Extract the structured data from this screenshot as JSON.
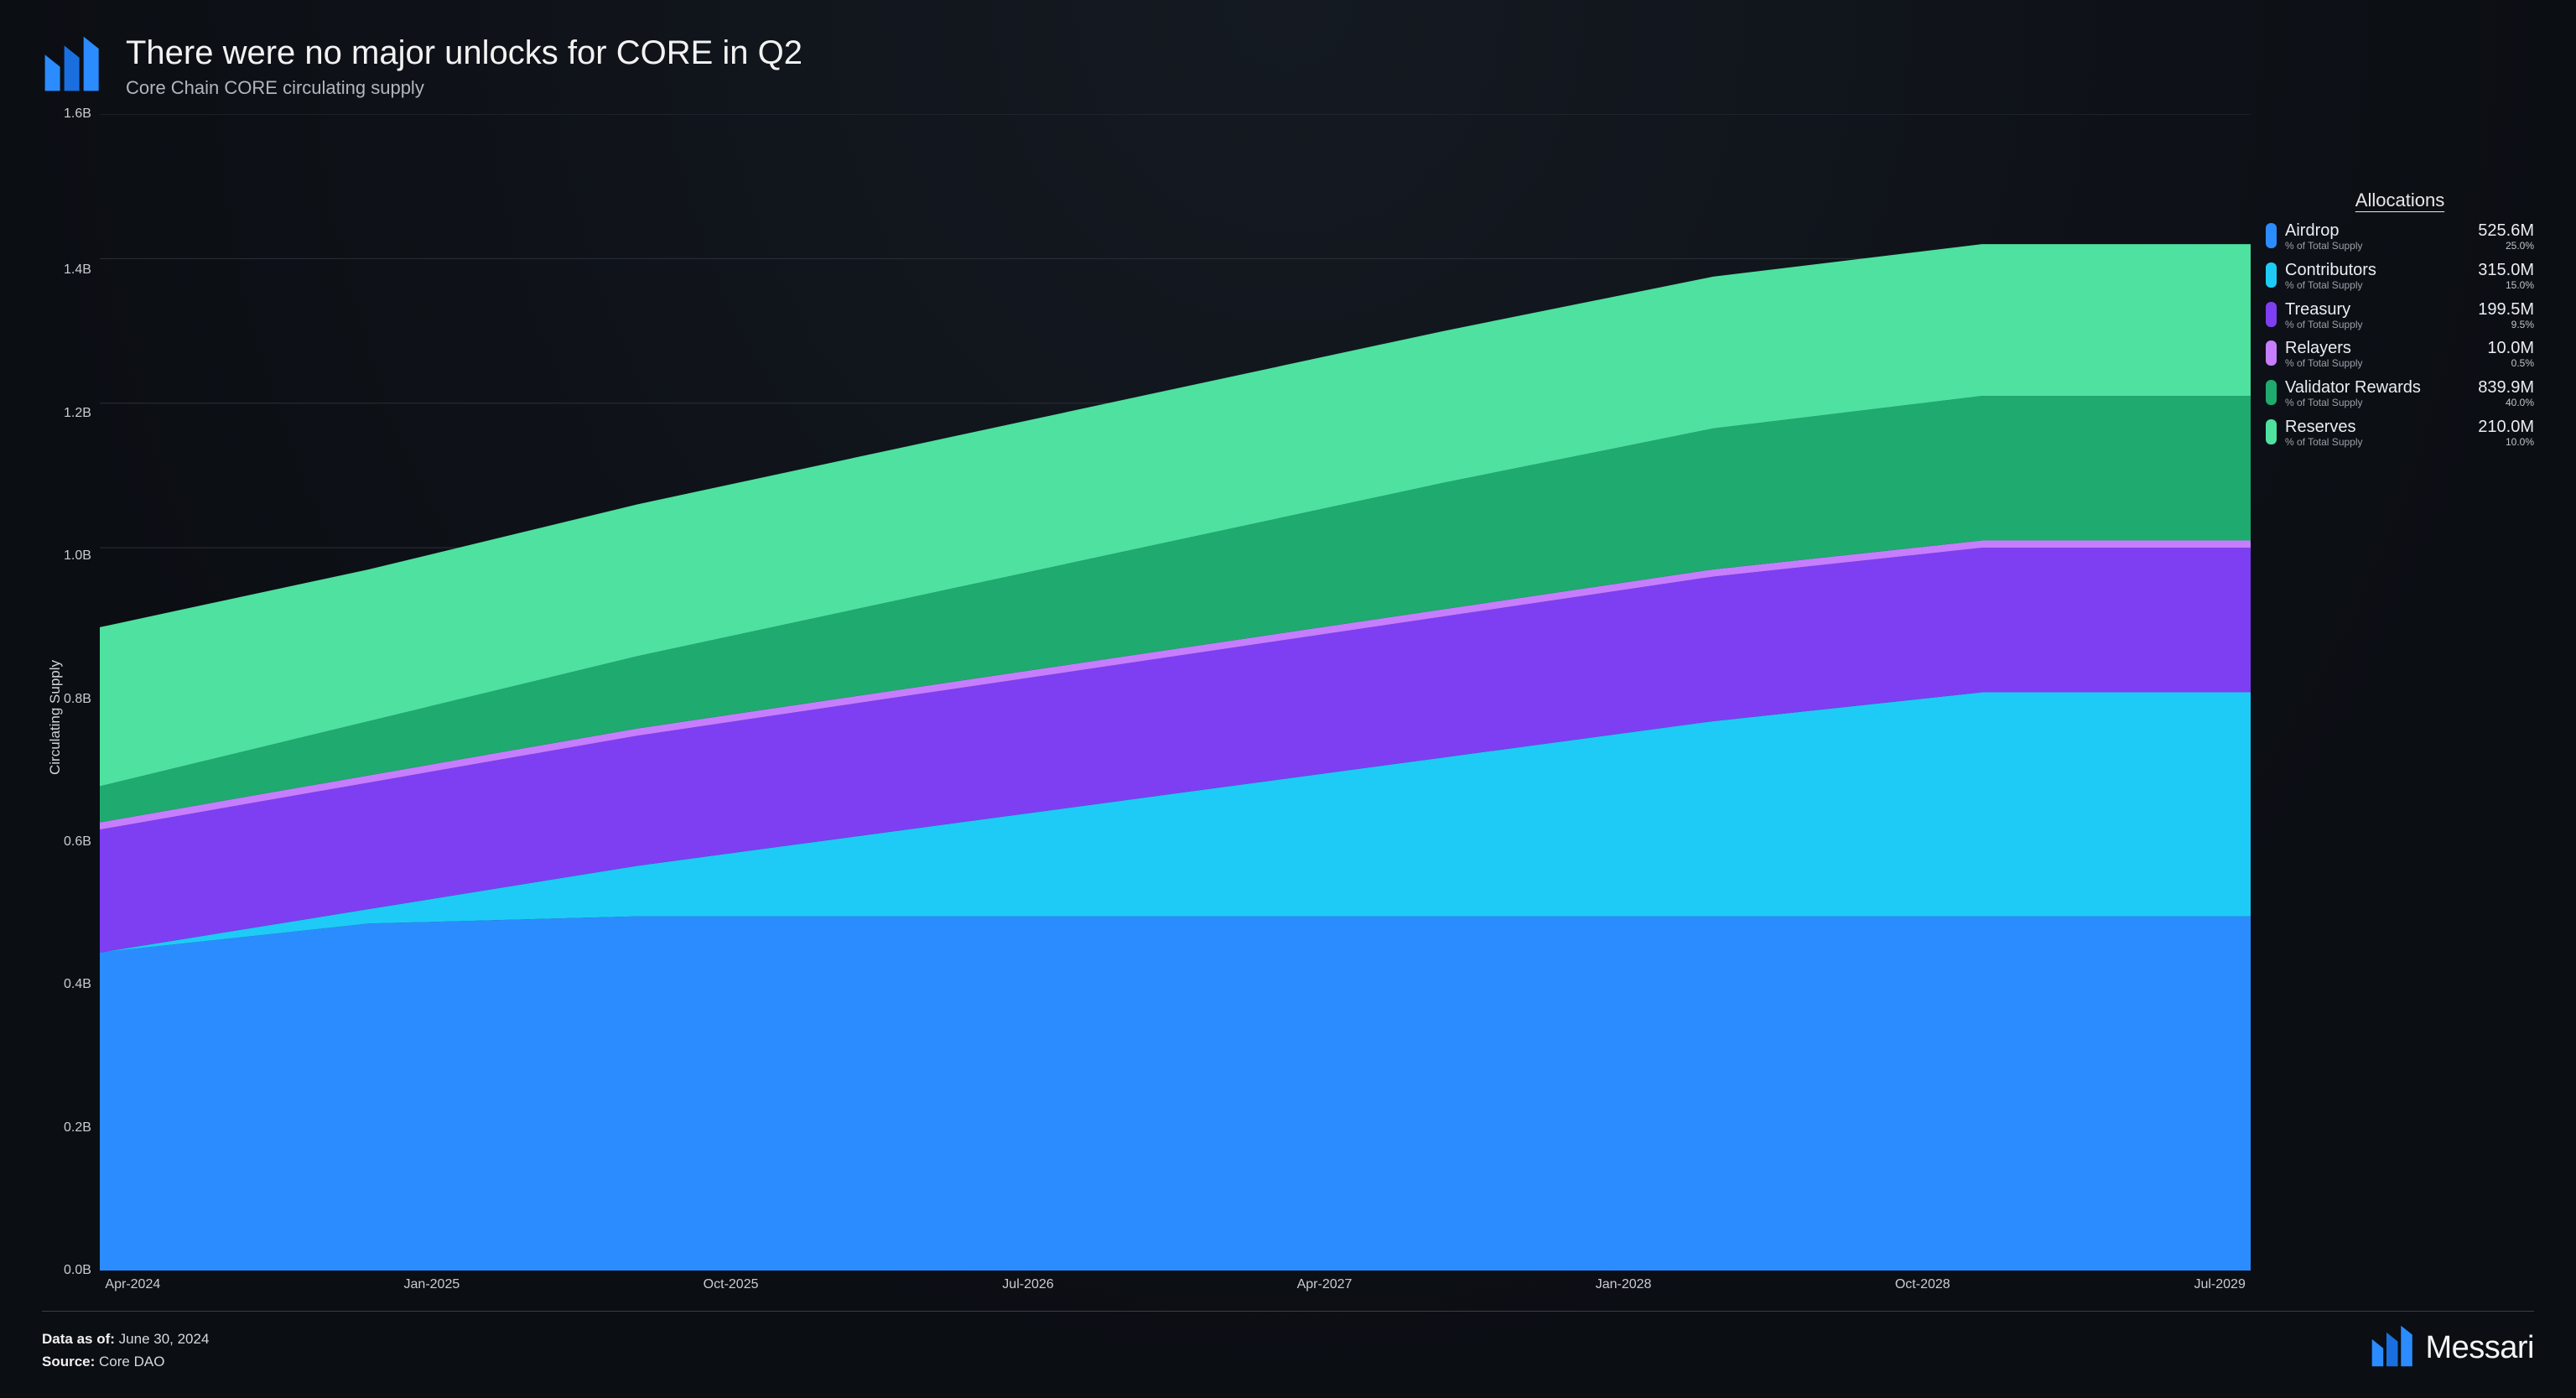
{
  "header": {
    "title": "There were no major unlocks for CORE in Q2",
    "subtitle": "Core Chain CORE circulating supply"
  },
  "brand": {
    "name": "Messari",
    "logo_color_a": "#2b8cff",
    "logo_color_b": "#0f5bd6"
  },
  "chart": {
    "type": "stacked-area",
    "background_color": "#0d1117",
    "grid_color": "#2b3038",
    "y_label": "Circulating Supply",
    "y_label_fontsize": 17,
    "axis_fontsize": 16,
    "ylim": [
      0,
      1.6
    ],
    "y_ticks": [
      "1.6B",
      "1.4B",
      "1.2B",
      "1.0B",
      "0.8B",
      "0.6B",
      "0.4B",
      "0.2B",
      "0.0B"
    ],
    "x_ticks": [
      "Apr-2024",
      "Jan-2025",
      "Oct-2025",
      "Jul-2026",
      "Apr-2027",
      "Jan-2028",
      "Oct-2028",
      "Jul-2029"
    ],
    "series_order": [
      "airdrop",
      "contributors",
      "treasury",
      "relayers",
      "validator_rewards",
      "reserves"
    ],
    "x_values": [
      0,
      1,
      2,
      3,
      4,
      5,
      6,
      7,
      8
    ],
    "series": {
      "airdrop": {
        "color": "#2b8cff",
        "values": [
          0.44,
          0.48,
          0.49,
          0.49,
          0.49,
          0.49,
          0.49,
          0.49,
          0.49
        ]
      },
      "contributors": {
        "color": "#1ecbf7",
        "values": [
          0.0,
          0.02,
          0.07,
          0.12,
          0.17,
          0.22,
          0.27,
          0.31,
          0.31
        ]
      },
      "treasury": {
        "color": "#7e3ff2",
        "values": [
          0.17,
          0.175,
          0.18,
          0.185,
          0.19,
          0.195,
          0.2,
          0.2,
          0.2
        ]
      },
      "relayers": {
        "color": "#c77dff",
        "values": [
          0.01,
          0.01,
          0.01,
          0.01,
          0.01,
          0.01,
          0.01,
          0.01,
          0.01
        ]
      },
      "validator_rewards": {
        "color": "#1faa6f",
        "values": [
          0.05,
          0.075,
          0.1,
          0.125,
          0.15,
          0.175,
          0.195,
          0.2,
          0.2
        ]
      },
      "reserves": {
        "color": "#4ee1a0",
        "values": [
          0.22,
          0.21,
          0.21,
          0.21,
          0.21,
          0.21,
          0.21,
          0.21,
          0.21
        ]
      }
    }
  },
  "legend": {
    "title": "Allocations",
    "sub_label": "% of Total Supply",
    "items": [
      {
        "key": "airdrop",
        "name": "Airdrop",
        "value": "525.6M",
        "pct": "25.0%",
        "color": "#2b8cff"
      },
      {
        "key": "contributors",
        "name": "Contributors",
        "value": "315.0M",
        "pct": "15.0%",
        "color": "#1ecbf7"
      },
      {
        "key": "treasury",
        "name": "Treasury",
        "value": "199.5M",
        "pct": "9.5%",
        "color": "#7e3ff2"
      },
      {
        "key": "relayers",
        "name": "Relayers",
        "value": "10.0M",
        "pct": "0.5%",
        "color": "#c77dff"
      },
      {
        "key": "validator_rewards",
        "name": "Validator Rewards",
        "value": "839.9M",
        "pct": "40.0%",
        "color": "#1faa6f"
      },
      {
        "key": "reserves",
        "name": "Reserves",
        "value": "210.0M",
        "pct": "10.0%",
        "color": "#4ee1a0"
      }
    ]
  },
  "footer": {
    "data_as_of_label": "Data as of:",
    "data_as_of_value": "June 30, 2024",
    "source_label": "Source:",
    "source_value": "Core DAO"
  }
}
